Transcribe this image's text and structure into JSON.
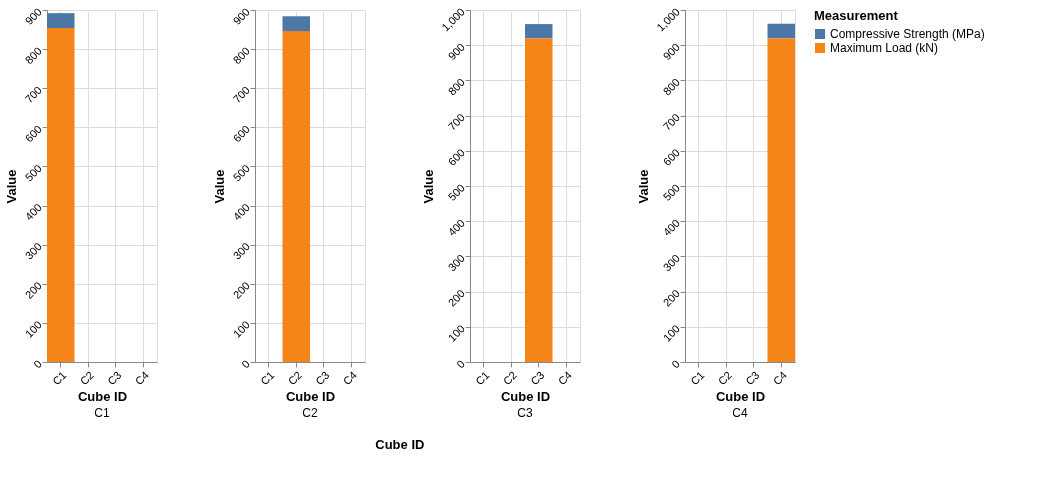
{
  "chart_data": [
    {
      "type": "bar",
      "stacked": true,
      "title": "C1",
      "xlabel": "Cube ID",
      "ylabel": "Value",
      "categories": [
        "C1",
        "C2",
        "C3",
        "C4"
      ],
      "ylim": [
        0,
        900
      ],
      "yticks": [
        0,
        100,
        200,
        300,
        400,
        500,
        600,
        700,
        800,
        900
      ],
      "grid": true,
      "series": [
        {
          "name": "Maximum Load (kN)",
          "color": "#f58518",
          "values": [
            854,
            null,
            null,
            null
          ]
        },
        {
          "name": "Compressive Strength (MPa)",
          "color": "#4c78a8",
          "values": [
            38,
            null,
            null,
            null
          ]
        }
      ],
      "annotations": [
        "Cube ID"
      ],
      "legend": "right",
      "legend_title": "Measurement"
    },
    {
      "type": "bar",
      "stacked": true,
      "title": "C2",
      "xlabel": "Cube ID",
      "ylabel": "Value",
      "categories": [
        "C1",
        "C2",
        "C3",
        "C4"
      ],
      "ylim": [
        0,
        900
      ],
      "yticks": [
        0,
        100,
        200,
        300,
        400,
        500,
        600,
        700,
        800,
        900
      ],
      "grid": true,
      "series": [
        {
          "name": "Maximum Load (kN)",
          "color": "#f58518",
          "values": [
            null,
            846,
            null,
            null
          ]
        },
        {
          "name": "Compressive Strength (MPa)",
          "color": "#4c78a8",
          "values": [
            null,
            38,
            null,
            null
          ]
        }
      ]
    },
    {
      "type": "bar",
      "stacked": true,
      "title": "C3",
      "xlabel": "Cube ID",
      "ylabel": "Value",
      "categories": [
        "C1",
        "C2",
        "C3",
        "C4"
      ],
      "ylim": [
        0,
        1000
      ],
      "yticks": [
        0,
        100,
        200,
        300,
        400,
        500,
        600,
        700,
        800,
        900,
        {
          "value": 1000,
          "label": "1,000"
        }
      ],
      "grid": true,
      "series": [
        {
          "name": "Maximum Load (kN)",
          "color": "#f58518",
          "values": [
            null,
            null,
            920,
            null
          ]
        },
        {
          "name": "Compressive Strength (MPa)",
          "color": "#4c78a8",
          "values": [
            null,
            null,
            40,
            null
          ]
        }
      ]
    },
    {
      "type": "bar",
      "stacked": true,
      "title": "C4",
      "xlabel": "Cube ID",
      "ylabel": "Value",
      "categories": [
        "C1",
        "C2",
        "C3",
        "C4"
      ],
      "ylim": [
        0,
        1000
      ],
      "yticks": [
        0,
        100,
        200,
        300,
        400,
        500,
        600,
        700,
        800,
        900,
        {
          "value": 1000,
          "label": "1,000"
        }
      ],
      "grid": true,
      "series": [
        {
          "name": "Maximum Load (kN)",
          "color": "#f58518",
          "values": [
            null,
            null,
            null,
            920
          ]
        },
        {
          "name": "Compressive Strength (MPa)",
          "color": "#4c78a8",
          "values": [
            null,
            null,
            null,
            41
          ]
        }
      ]
    }
  ]
}
